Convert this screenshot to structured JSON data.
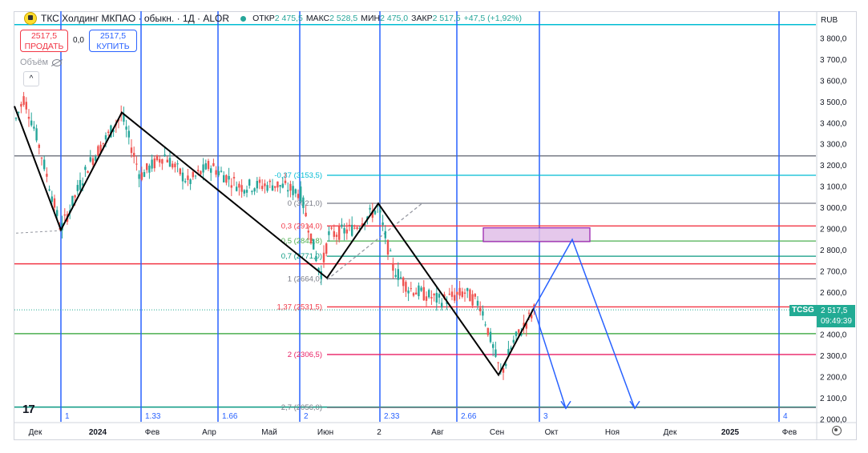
{
  "legend": {
    "title": "ТКС Холдинг МКПАО · обыкн. · 1Д · ALOR",
    "open_label": "ОТКР",
    "open_value": "2 475,5",
    "high_label": "МАКС",
    "high_value": "2 528,5",
    "low_label": "МИН",
    "low_value": "2 475,0",
    "close_label": "ЗАКР",
    "close_value": "2 517,5",
    "change": "+47,5 (+1,92%)"
  },
  "trade": {
    "sell_price": "2517,5",
    "sell_label": "ПРОДАТЬ",
    "spread": "0,0",
    "buy_price": "2517,5",
    "buy_label": "КУПИТЬ"
  },
  "volume_label": "Объём",
  "collapse_symbol": "^",
  "currency": "RUB",
  "tv_logo": "17",
  "last_price": {
    "ticker": "TCSG",
    "price": "2 517,5",
    "countdown": "09:49:39"
  },
  "colors": {
    "up": "#26a69a",
    "down": "#ef5350",
    "blue": "#2962ff",
    "black": "#000000",
    "accent_last": "#22ab94"
  },
  "chart_data": {
    "type": "candlestick",
    "y_axis_ticks": [
      "3 800,0",
      "3 700,0",
      "3 600,0",
      "3 500,0",
      "3 400,0",
      "3 300,0",
      "3 200,0",
      "3 100,0",
      "3 000,0",
      "2 900,0",
      "2 800,0",
      "2 700,0",
      "2 600,0",
      "2 500,0",
      "2 400,0",
      "2 300,0",
      "2 200,0",
      "2 100,0",
      "2 000,0"
    ],
    "ylim": [
      1995,
      3840
    ],
    "x_axis_labels": [
      "Дек",
      "2024",
      "Фев",
      "Апр",
      "Май",
      "Июн",
      "2",
      "Авг",
      "Сен",
      "Окт",
      "Ноя",
      "Дек",
      "2025",
      "Фев"
    ],
    "x_axis_positions": [
      44,
      122,
      190,
      261,
      336,
      406,
      473,
      546,
      620,
      688,
      764,
      836,
      911,
      985
    ],
    "fib_levels": [
      {
        "label": "-0,37 (3153,5)",
        "price": 3153.5,
        "color": "#00bcd4"
      },
      {
        "label": "0 (3021,0)",
        "price": 3021,
        "color": "#787b86"
      },
      {
        "label": "0,3 (2914,0)",
        "price": 2914,
        "color": "#f23645"
      },
      {
        "label": "0,5 (2842,8)",
        "price": 2842.8,
        "color": "#4caf50"
      },
      {
        "label": "0,7 (2771,0)",
        "price": 2771,
        "color": "#089981"
      },
      {
        "label": "1 (2664,0)",
        "price": 2664,
        "color": "#787b86"
      },
      {
        "label": "1,37 (2531,5)",
        "price": 2531.5,
        "color": "#f23645"
      },
      {
        "label": "2 (2306,5)",
        "price": 2306.5,
        "color": "#e91e63"
      },
      {
        "label": "2,7 (2056,0)",
        "price": 2056,
        "color": "#787b86"
      }
    ],
    "horizontal_lines": [
      {
        "price": 3865,
        "color": "#00bcd4"
      },
      {
        "price": 3245,
        "color": "#787b86"
      },
      {
        "price": 2735,
        "color": "#f23645"
      },
      {
        "price": 2405,
        "color": "#4caf50"
      },
      {
        "price": 2058,
        "color": "#089981"
      }
    ],
    "time_cycle_labels": [
      "1",
      "1.33",
      "1.66",
      "2",
      "2.33",
      "2.66",
      "3",
      "4"
    ],
    "zigzag_prices": [
      3470,
      2895,
      3450,
      2668,
      3020,
      2210,
      2525
    ],
    "projection_prices": [
      2525,
      2850,
      2050
    ],
    "projection_prices_2": [
      2525,
      2050
    ]
  }
}
